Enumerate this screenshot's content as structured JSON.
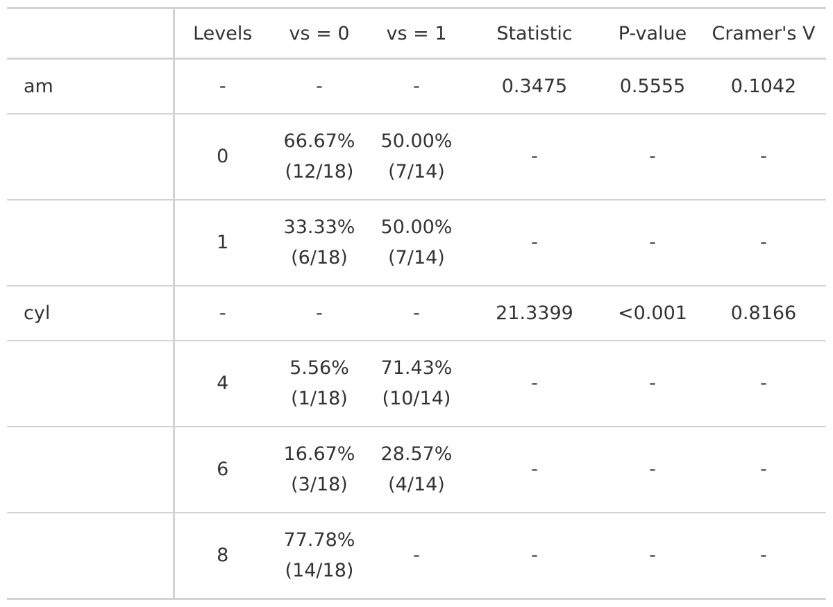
{
  "columns": [
    "",
    "Levels",
    "vs = 0",
    "vs = 1",
    "Statistic",
    "P-value",
    "Cramer's V"
  ],
  "rows": [
    {
      "variable": "am",
      "level": "-",
      "vs0": {
        "pct": "-",
        "frac": ""
      },
      "vs1": {
        "pct": "-",
        "frac": ""
      },
      "statistic": "0.3475",
      "pvalue": "0.5555",
      "cramers_v": "0.1042"
    },
    {
      "variable": "",
      "level": "0",
      "vs0": {
        "pct": "66.67%",
        "frac": "(12/18)"
      },
      "vs1": {
        "pct": "50.00%",
        "frac": "(7/14)"
      },
      "statistic": "-",
      "pvalue": "-",
      "cramers_v": "-"
    },
    {
      "variable": "",
      "level": "1",
      "vs0": {
        "pct": "33.33%",
        "frac": "(6/18)"
      },
      "vs1": {
        "pct": "50.00%",
        "frac": "(7/14)"
      },
      "statistic": "-",
      "pvalue": "-",
      "cramers_v": "-"
    },
    {
      "variable": "cyl",
      "level": "-",
      "vs0": {
        "pct": "-",
        "frac": ""
      },
      "vs1": {
        "pct": "-",
        "frac": ""
      },
      "statistic": "21.3399",
      "pvalue": "<0.001",
      "cramers_v": "0.8166"
    },
    {
      "variable": "",
      "level": "4",
      "vs0": {
        "pct": "5.56%",
        "frac": "(1/18)"
      },
      "vs1": {
        "pct": "71.43%",
        "frac": "(10/14)"
      },
      "statistic": "-",
      "pvalue": "-",
      "cramers_v": "-"
    },
    {
      "variable": "",
      "level": "6",
      "vs0": {
        "pct": "16.67%",
        "frac": "(3/18)"
      },
      "vs1": {
        "pct": "28.57%",
        "frac": "(4/14)"
      },
      "statistic": "-",
      "pvalue": "-",
      "cramers_v": "-"
    },
    {
      "variable": "",
      "level": "8",
      "vs0": {
        "pct": "77.78%",
        "frac": "(14/18)"
      },
      "vs1": {
        "pct": "-",
        "frac": ""
      },
      "statistic": "-",
      "pvalue": "-",
      "cramers_v": "-"
    }
  ]
}
